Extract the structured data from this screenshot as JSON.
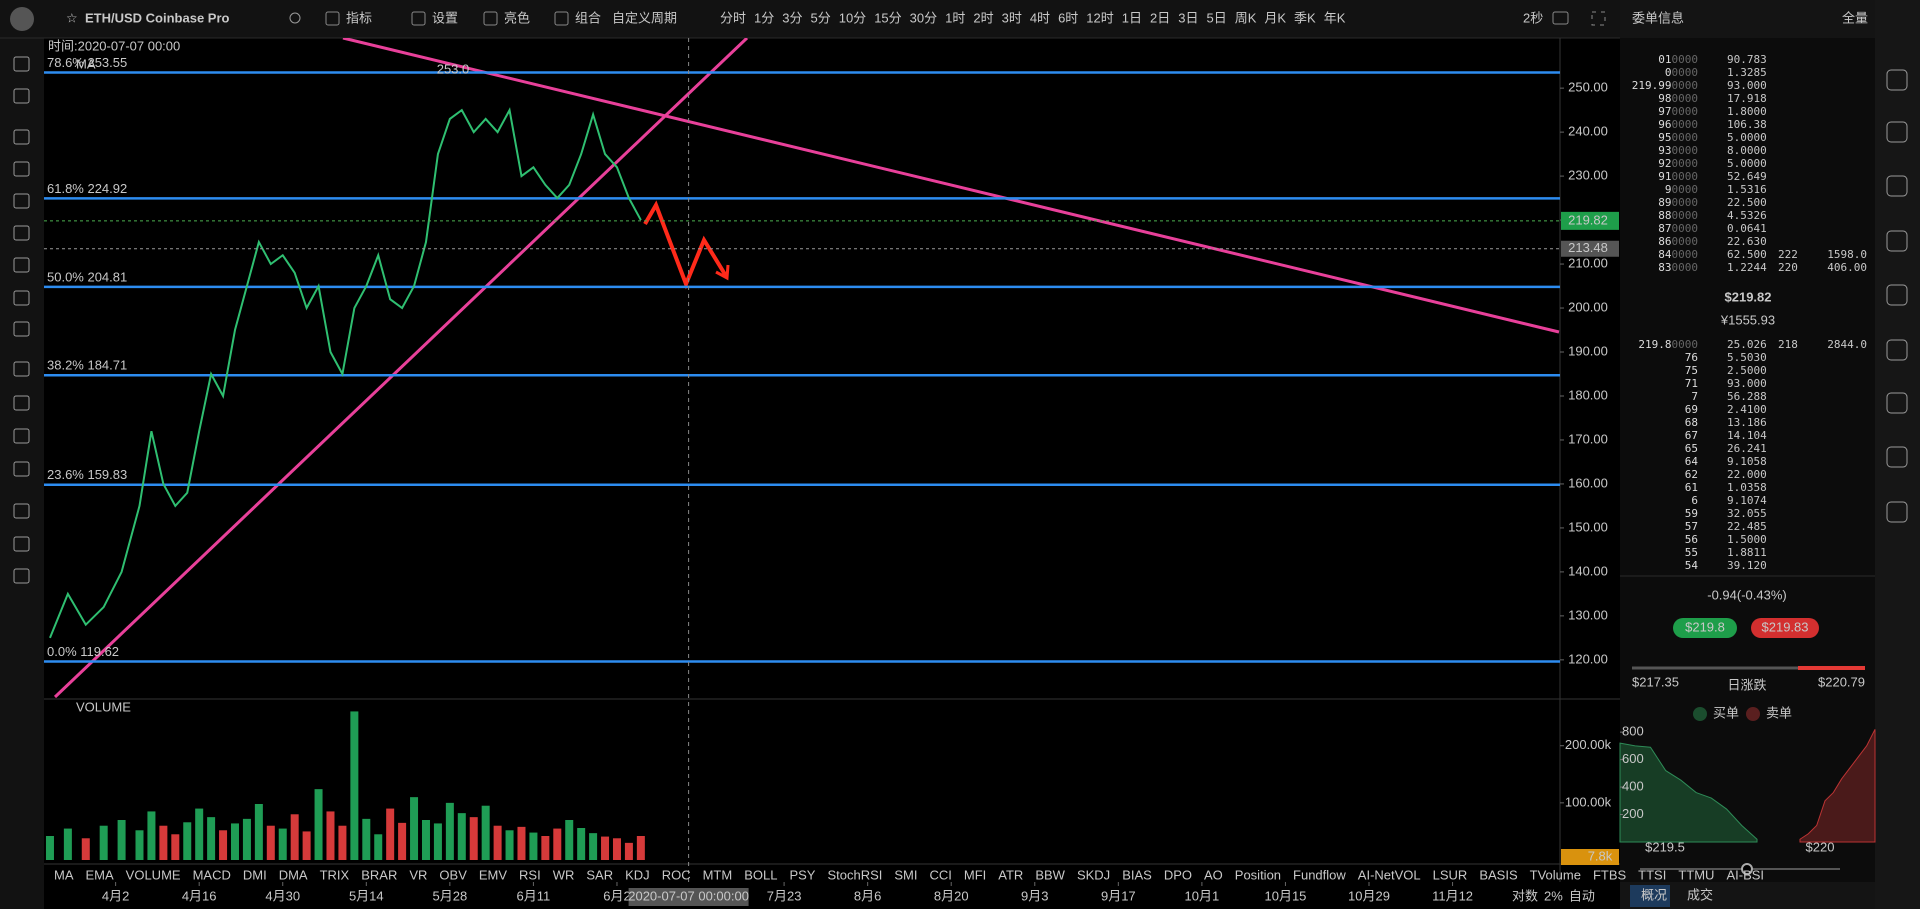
{
  "header": {
    "symbol": "ETH/USD Coinbase Pro",
    "tools": [
      "指标",
      "设置",
      "亮色",
      "组合"
    ],
    "custom_period": "自定义周期",
    "periods": [
      "分时",
      "1分",
      "3分",
      "5分",
      "10分",
      "15分",
      "30分",
      "1时",
      "2时",
      "3时",
      "4时",
      "6时",
      "12时",
      "1日",
      "2日",
      "3日",
      "5日",
      "周K",
      "月K",
      "季K",
      "年K"
    ],
    "active_period": "4时",
    "refresh": "2秒"
  },
  "chart_data": {
    "type": "line",
    "info": "时间:2020-07-07 00:00",
    "ma_label": "MA",
    "peak_label": "253.0",
    "color": "#2fbf71",
    "x": [
      -11,
      -8,
      -5,
      -2,
      1,
      4,
      6,
      8,
      10,
      12,
      14,
      16,
      18,
      20,
      22,
      24,
      26,
      28,
      30,
      32,
      34,
      36,
      38,
      40,
      42,
      44,
      46,
      48,
      50,
      52,
      54,
      56,
      58,
      60,
      62,
      64,
      66,
      68,
      70,
      72,
      74,
      76,
      78,
      80,
      82,
      84,
      86,
      88
    ],
    "values": [
      125,
      135,
      128,
      132,
      140,
      155,
      172,
      160,
      155,
      158,
      172,
      185,
      180,
      195,
      205,
      215,
      210,
      212,
      208,
      200,
      205,
      190,
      185,
      200,
      205,
      212,
      202,
      200,
      205,
      215,
      235,
      243,
      245,
      240,
      243,
      240,
      245,
      230,
      232,
      228,
      225,
      228,
      235,
      244,
      235,
      232,
      225,
      220
    ],
    "xlim": [
      -12,
      242
    ],
    "ylim": [
      111.1,
      261.4
    ],
    "xticks": [
      {
        "value": 0,
        "label": "4月2"
      },
      {
        "value": 14,
        "label": "4月16"
      },
      {
        "value": 28,
        "label": "4月30"
      },
      {
        "value": 42,
        "label": "5月14"
      },
      {
        "value": 56,
        "label": "5月28"
      },
      {
        "value": 70,
        "label": "6月11"
      },
      {
        "value": 84,
        "label": "6月2"
      },
      {
        "value": 112,
        "label": "7月23"
      },
      {
        "value": 126,
        "label": "8月6"
      },
      {
        "value": 140,
        "label": "8月20"
      },
      {
        "value": 154,
        "label": "9月3"
      },
      {
        "value": 168,
        "label": "9月17"
      },
      {
        "value": 182,
        "label": "10月1"
      },
      {
        "value": 196,
        "label": "10月15"
      },
      {
        "value": 210,
        "label": "10月29"
      },
      {
        "value": 224,
        "label": "11月12"
      }
    ],
    "yticks": [
      {
        "value": 250,
        "label": "250.00"
      },
      {
        "value": 240,
        "label": "240.00"
      },
      {
        "value": 230,
        "label": "230.00"
      },
      {
        "value": 220,
        "label": "220.00"
      },
      {
        "value": 210,
        "label": "210.00"
      },
      {
        "value": 200,
        "label": "200.00"
      },
      {
        "value": 190,
        "label": "190.00"
      },
      {
        "value": 180,
        "label": "180.00"
      },
      {
        "value": 170,
        "label": "170.00"
      },
      {
        "value": 160,
        "label": "160.00"
      },
      {
        "value": 150,
        "label": "150.00"
      },
      {
        "value": 140,
        "label": "140.00"
      },
      {
        "value": 130,
        "label": "130.00"
      },
      {
        "value": 120,
        "label": "120.00"
      }
    ],
    "fib_levels": [
      {
        "value": 253.55,
        "label": "78.6% 253.55"
      },
      {
        "value": 224.92,
        "label": "61.8% 224.92"
      },
      {
        "value": 204.81,
        "label": "50.0% 204.81"
      },
      {
        "value": 184.71,
        "label": "38.2% 184.71"
      },
      {
        "value": 159.83,
        "label": "23.6% 159.83"
      },
      {
        "value": 119.62,
        "label": "0.0% 119.62"
      }
    ],
    "last_price": 219.82,
    "ref_price": 213.48,
    "crosshair": {
      "value": 96,
      "label": "2020-07-07 00:00:00"
    },
    "volume": {
      "title": "VOLUME",
      "ylim": [
        0,
        280000
      ],
      "yticks": [
        {
          "value": 200000,
          "label": "200.00k"
        },
        {
          "value": 100000,
          "label": "100.00k"
        }
      ],
      "last_label": "7.8k",
      "values": [
        42000,
        55000,
        38000,
        60000,
        70000,
        52000,
        85000,
        60000,
        45000,
        66000,
        90000,
        75000,
        52000,
        64000,
        72000,
        98000,
        60000,
        55000,
        80000,
        50000,
        124000,
        85000,
        60000,
        260000,
        72000,
        45000,
        90000,
        65000,
        110000,
        70000,
        64000,
        100000,
        82000,
        75000,
        95000,
        60000,
        52000,
        58000,
        48000,
        42000,
        55000,
        70000,
        56000,
        47000,
        41000,
        38000,
        30000,
        42000
      ]
    },
    "indicators": [
      "MA",
      "EMA",
      "VOLUME",
      "MACD",
      "DMI",
      "DMA",
      "TRIX",
      "BRAR",
      "VR",
      "OBV",
      "EMV",
      "RSI",
      "WR",
      "SAR",
      "KDJ",
      "ROC",
      "MTM",
      "BOLL",
      "PSY",
      "StochRSI",
      "SMI",
      "CCI",
      "MFI",
      "ATR",
      "BBW",
      "SKDJ",
      "BIAS",
      "DPO",
      "AO",
      "Position",
      "Fundflow",
      "AI-NetVOL",
      "LSUR",
      "BASIS",
      "TVolume",
      "FTBS",
      "TTSI",
      "TTMU",
      "AI-BSI"
    ],
    "active_indicator": "VOLUME",
    "footer_right": [
      "对数",
      "2%",
      "自动"
    ]
  },
  "order_book": {
    "title": "委单信息",
    "mode": "全量",
    "asks": [
      [
        "01",
        "0000",
        "90.783"
      ],
      [
        "0",
        "0000",
        "1.3285"
      ],
      [
        "219.99",
        "0000",
        "93.000"
      ],
      [
        "98",
        "0000",
        "17.918"
      ],
      [
        "97",
        "0000",
        "1.8000"
      ],
      [
        "96",
        "0000",
        "106.38"
      ],
      [
        "95",
        "0000",
        "5.0000"
      ],
      [
        "93",
        "0000",
        "8.0000"
      ],
      [
        "92",
        "0000",
        "5.0000"
      ],
      [
        "91",
        "0000",
        "52.649"
      ],
      [
        "9",
        "0000",
        "1.5316"
      ],
      [
        "89",
        "0000",
        "22.500"
      ],
      [
        "88",
        "0000",
        "4.5326"
      ],
      [
        "87",
        "0000",
        "0.0641"
      ],
      [
        "86",
        "0000",
        "22.630"
      ],
      [
        "84",
        "0000",
        "62.500",
        "222",
        "1598.0"
      ],
      [
        "83",
        "0000",
        "1.2244",
        "220",
        "406.00"
      ]
    ],
    "mid_price": "$219.82",
    "mid_cny": "¥1555.93",
    "bids": [
      [
        "219.8",
        "0000",
        "25.026",
        "218",
        "2844.0"
      ],
      [
        "76",
        "",
        "5.5030"
      ],
      [
        "75",
        "",
        "2.5000"
      ],
      [
        "71",
        "",
        "93.000"
      ],
      [
        "7",
        "",
        "56.288"
      ],
      [
        "69",
        "",
        "2.4100"
      ],
      [
        "68",
        "",
        "13.186"
      ],
      [
        "67",
        "",
        "14.104"
      ],
      [
        "65",
        "",
        "26.241"
      ],
      [
        "64",
        "",
        "9.1058"
      ],
      [
        "62",
        "",
        "22.000"
      ],
      [
        "61",
        "",
        "1.0358"
      ],
      [
        "6",
        "",
        "9.1074"
      ],
      [
        "59",
        "",
        "32.055"
      ],
      [
        "57",
        "",
        "22.485"
      ],
      [
        "56",
        "",
        "1.5000"
      ],
      [
        "55",
        "",
        "1.8811"
      ],
      [
        "54",
        "",
        "39.120"
      ]
    ]
  },
  "summary": {
    "change": "-0.94(-0.43%)",
    "bid": "$219.8",
    "ask": "$219.83",
    "low": "$217.35",
    "range_label": "日涨跌",
    "high": "$220.79",
    "legend": [
      "买单",
      "卖单"
    ]
  },
  "depth": {
    "ylim": [
      0,
      830
    ],
    "yticks": [
      800,
      600,
      400,
      200
    ],
    "bids": [
      720,
      700,
      690,
      520,
      450,
      360,
      320,
      240,
      120,
      20
    ],
    "asks": [
      20,
      60,
      120,
      300,
      360,
      460,
      540,
      620,
      700,
      820
    ],
    "x_labels": [
      "$219.5",
      "$220"
    ]
  },
  "tabs": [
    "概况",
    "成交"
  ]
}
